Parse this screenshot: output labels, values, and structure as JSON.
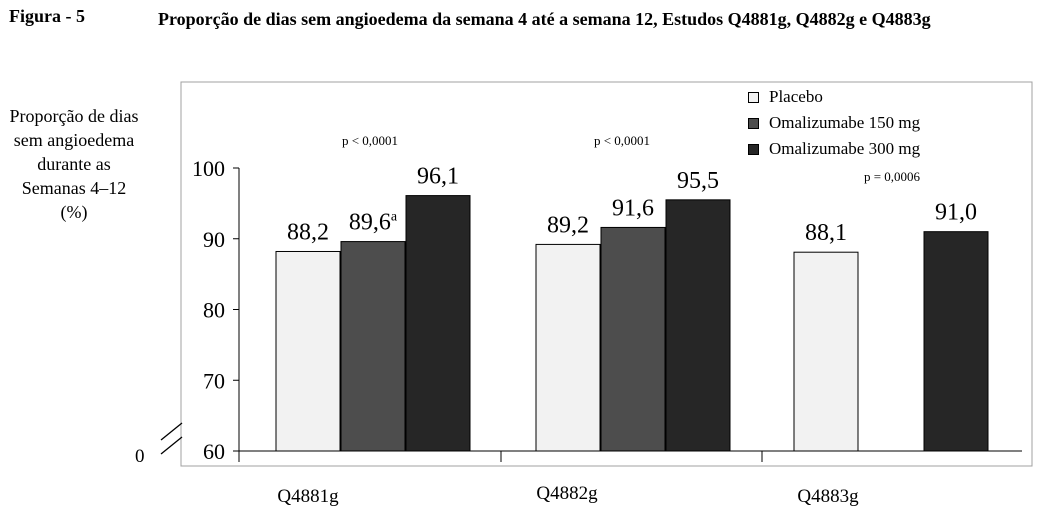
{
  "figure": {
    "label": "Figura - 5",
    "title": "Proporção de dias sem angioedema da semana 4 até a semana 12, Estudos Q4881g, Q4882g e Q4883g"
  },
  "axis_break_label": "0",
  "chart_data": {
    "type": "bar",
    "title": "Proporção de dias sem angioedema da semana 4 até a semana 12, Estudos Q4881g, Q4882g e Q4883g",
    "ylabel": "Proporção de dias sem angioedema durante as Semanas 4–12 (%)",
    "xlabel": "",
    "ylim": [
      60,
      100
    ],
    "yticks": [
      60,
      70,
      80,
      90,
      100
    ],
    "y_axis_break": true,
    "grid": false,
    "legend_position": "top-right",
    "categories": [
      "Q4881g",
      "Q4882g",
      "Q4883g"
    ],
    "series": [
      {
        "name": "Placebo",
        "color": "#f2f2f2",
        "values": [
          88.2,
          89.2,
          88.1
        ],
        "labels": [
          "88,2",
          "89,2",
          "88,1"
        ]
      },
      {
        "name": "Omalizumabe 150 mg",
        "color": "#4d4d4d",
        "values": [
          89.6,
          91.6,
          null
        ],
        "labels": [
          "89,6",
          "91,6",
          ""
        ]
      },
      {
        "name": "Omalizumabe 300 mg",
        "color": "#262626",
        "values": [
          96.1,
          95.5,
          91.0
        ],
        "labels": [
          "96,1",
          "95,5",
          "91,0"
        ]
      }
    ],
    "superscripts": [
      [
        "",
        "a",
        ""
      ],
      [
        "",
        "",
        ""
      ],
      [
        "",
        "",
        ""
      ]
    ],
    "p_values": [
      "p < 0,0001",
      "p < 0,0001",
      "p = 0,0006"
    ]
  }
}
